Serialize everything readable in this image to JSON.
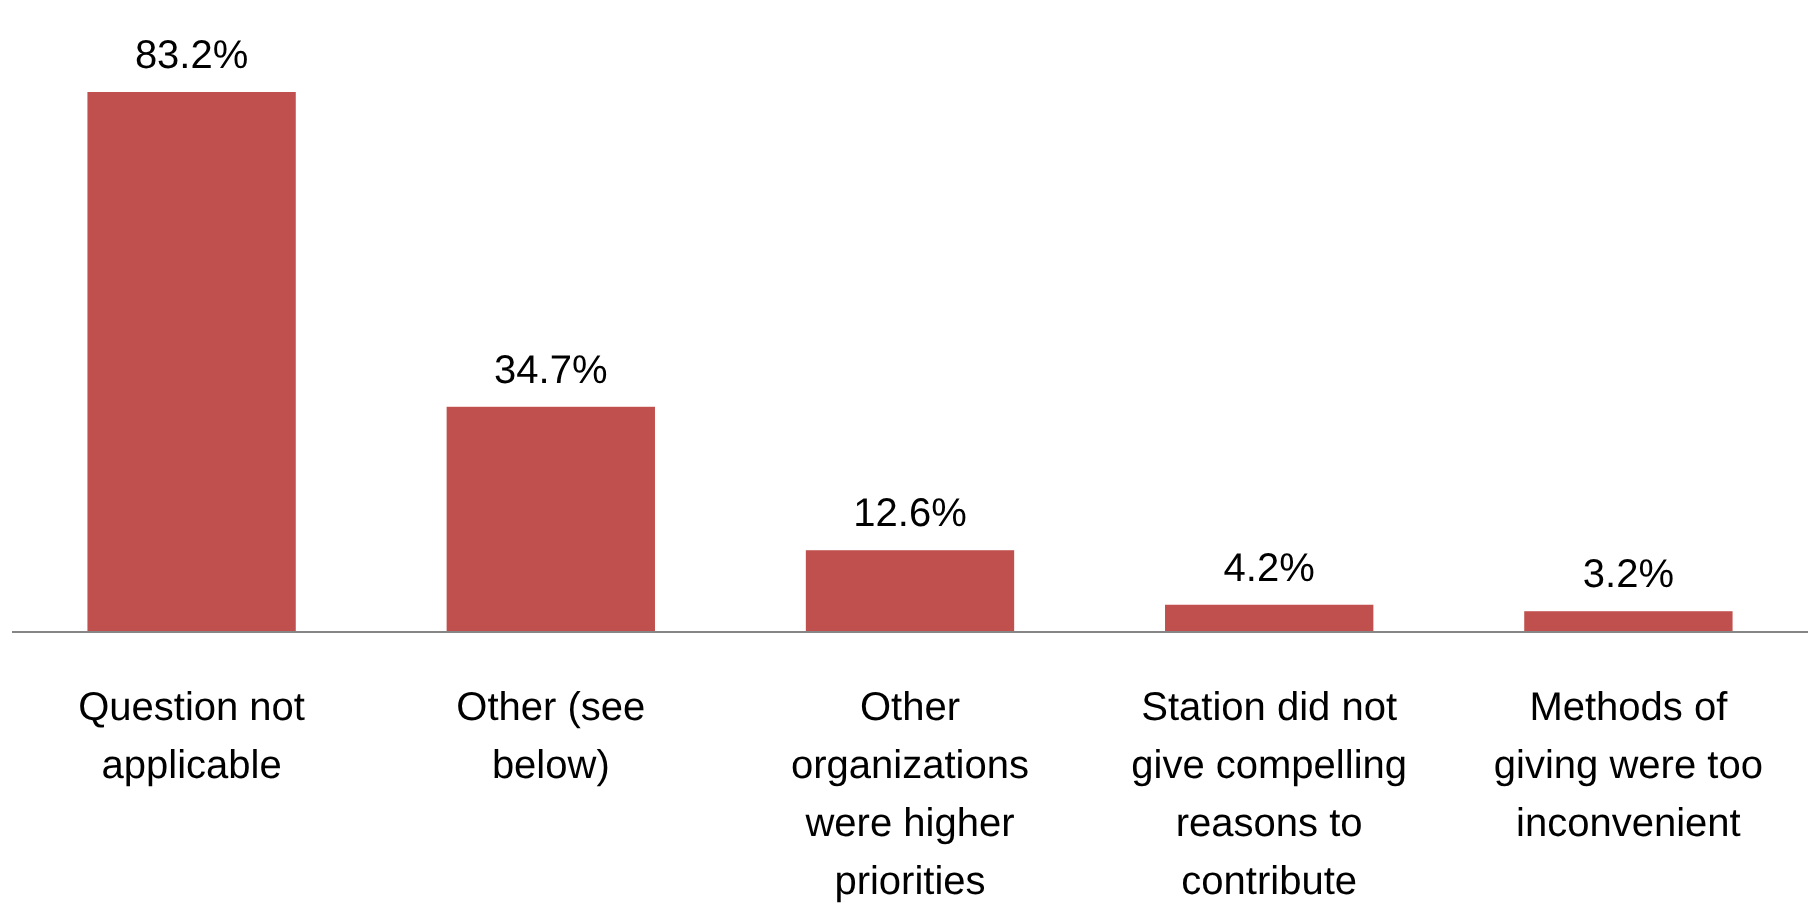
{
  "chart_data": {
    "type": "bar",
    "categories": [
      "Question not applicable",
      "Other (see below)",
      "Other organizations were higher priorities",
      "Station did not give compelling reasons to contribute",
      "Methods of giving were too inconvenient"
    ],
    "values": [
      83.2,
      34.7,
      12.6,
      4.2,
      3.2
    ],
    "value_labels": [
      "83.2%",
      "34.7%",
      "12.6%",
      "4.2%",
      "3.2%"
    ],
    "color": "#c0504d"
  }
}
